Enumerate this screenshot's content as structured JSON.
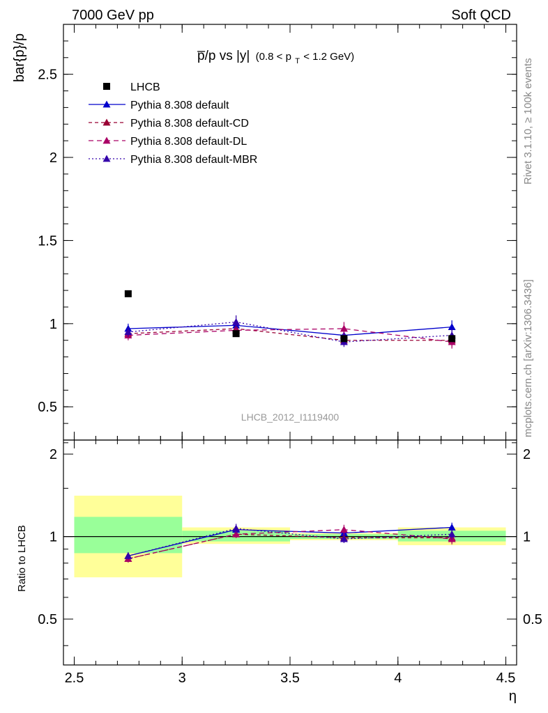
{
  "header": {
    "left": "7000 GeV pp",
    "right": "Soft QCD"
  },
  "side_text": {
    "rivet": "Rivet 3.1.10, ≥ 100k events",
    "mcplots": "mcplots.cern.ch [arXiv:1306.3436]"
  },
  "chart_data": {
    "type": "line",
    "title_main": "p̅/p vs |y|",
    "title_range": "(0.8 < p",
    "title_sub": "T",
    "title_unit": " < 1.2 GeV)",
    "analysis_label": "LHCB_2012_I1119400",
    "xlabel": "η",
    "ylabel": "bar{p}/p",
    "ratio_ylabel": "Ratio to LHCB",
    "xlim": [
      2.45,
      4.55
    ],
    "ylim": [
      0.3,
      2.8
    ],
    "ratio_ylim": [
      0.34,
      2.25
    ],
    "x_ticks": [
      "2.5",
      "3",
      "3.5",
      "4",
      "4.5"
    ],
    "x_tick_values": [
      2.5,
      3,
      3.5,
      4,
      4.5
    ],
    "y_ticks": [
      "0.5",
      "1",
      "1.5",
      "2",
      "2.5"
    ],
    "y_tick_values": [
      0.5,
      1,
      1.5,
      2,
      2.5
    ],
    "ratio_y_ticks": [
      "0.5",
      "1",
      "2"
    ],
    "ratio_y_tick_values": [
      0.5,
      1,
      2
    ],
    "bins": [
      [
        2.5,
        3.0
      ],
      [
        3.0,
        3.5
      ],
      [
        3.5,
        4.0
      ],
      [
        4.0,
        4.5
      ]
    ],
    "x": [
      2.75,
      3.25,
      3.75,
      4.25
    ],
    "data": {
      "name": "LHCB",
      "values": [
        1.18,
        0.94,
        0.91,
        0.91
      ],
      "errors": [
        0.01,
        0.01,
        0.01,
        0.01
      ],
      "ratio_band_inner": [
        [
          0.87,
          1.18
        ],
        [
          0.96,
          1.05
        ],
        [
          0.98,
          1.02
        ],
        [
          0.96,
          1.05
        ]
      ],
      "ratio_band_outer": [
        [
          0.71,
          1.41
        ],
        [
          0.94,
          1.08
        ],
        [
          0.97,
          1.03
        ],
        [
          0.93,
          1.08
        ]
      ]
    },
    "series": [
      {
        "name": "Pythia 8.308 default",
        "color": "#0000cc",
        "dash": "",
        "values": [
          0.97,
          0.99,
          0.93,
          0.98
        ],
        "errors": [
          0.03,
          0.03,
          0.03,
          0.04
        ],
        "ratio": [
          0.85,
          1.06,
          1.03,
          1.08
        ]
      },
      {
        "name": "Pythia 8.308 default-CD",
        "color": "#990033",
        "dash": "5,4",
        "values": [
          0.94,
          0.97,
          0.9,
          0.9
        ],
        "errors": [
          0.03,
          0.03,
          0.03,
          0.04
        ],
        "ratio": [
          0.83,
          1.02,
          0.99,
          0.99
        ]
      },
      {
        "name": "Pythia 8.308 default-DL",
        "color": "#aa0066",
        "dash": "7,5",
        "values": [
          0.93,
          0.96,
          0.97,
          0.89
        ],
        "errors": [
          0.03,
          0.03,
          0.04,
          0.04
        ],
        "ratio": [
          0.83,
          1.02,
          1.06,
          0.98
        ]
      },
      {
        "name": "Pythia 8.308 default-MBR",
        "color": "#3300aa",
        "dash": "2,3",
        "values": [
          0.95,
          1.01,
          0.89,
          0.93
        ],
        "errors": [
          0.03,
          0.04,
          0.03,
          0.04
        ],
        "ratio": [
          0.85,
          1.07,
          0.98,
          1.02
        ]
      }
    ]
  }
}
